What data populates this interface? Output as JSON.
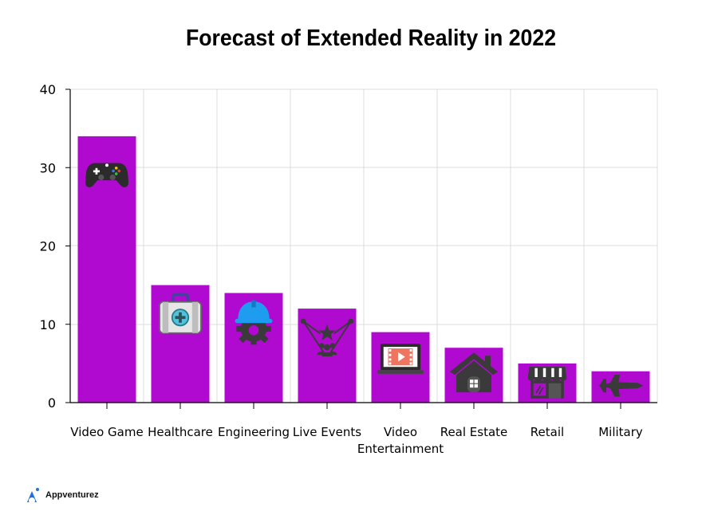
{
  "brand": {
    "name": "Appventurez",
    "accent": "#1e6fe0"
  },
  "colors": {
    "bar": "#b00ad0",
    "icon": "#3a3a3a",
    "grid": "#dcdcdc"
  },
  "chart_data": {
    "type": "bar",
    "title": "Forecast of Extended Reality in 2022",
    "xlabel": "",
    "ylabel": "",
    "categories": [
      "Video Game",
      "Healthcare",
      "Engineering",
      "Live Events",
      "Video Entertainment",
      "Real Estate",
      "Retail",
      "Military"
    ],
    "category_lines": [
      [
        "Video Game"
      ],
      [
        "Healthcare"
      ],
      [
        "Engineering"
      ],
      [
        "Live Events"
      ],
      [
        "Video",
        "Entertainment"
      ],
      [
        "Real Estate"
      ],
      [
        "Retail"
      ],
      [
        "Military"
      ]
    ],
    "values": [
      34,
      15,
      14,
      12,
      9,
      7,
      5,
      4
    ],
    "icons": [
      "gamepad-icon",
      "first-aid-kit-icon",
      "hard-hat-gear-icon",
      "star-audience-icon",
      "video-monitor-icon",
      "house-icon",
      "storefront-icon",
      "fighter-jet-icon"
    ],
    "ylim": [
      0,
      40
    ],
    "yticks": [
      0,
      10,
      20,
      30,
      40
    ],
    "grid": true,
    "legend": "none"
  }
}
